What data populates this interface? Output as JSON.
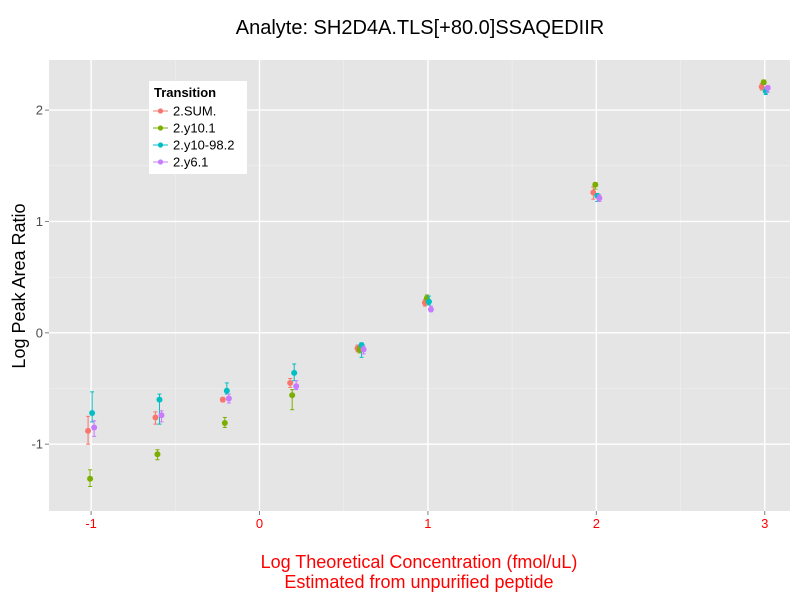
{
  "chart_data": {
    "type": "scatter",
    "title": "Analyte: SH2D4A.TLS[+80.0]SSAQEDIIR",
    "xlabel": [
      "Log Theoretical Concentration (fmol/uL)",
      "Estimated from unpurified peptide"
    ],
    "ylabel": "Log Peak Area Ratio",
    "xlim": [
      -1.25,
      3.15
    ],
    "ylim": [
      -1.6,
      2.45
    ],
    "x_ticks": [
      -1,
      0,
      1,
      2,
      3
    ],
    "y_ticks": [
      -1,
      0,
      1,
      2
    ],
    "x_tick_labels": [
      "-1",
      "0",
      "1",
      "2",
      "3"
    ],
    "y_tick_labels": [
      "-1",
      "0",
      "1",
      "2"
    ],
    "grid": true,
    "error_bars": true,
    "legend": {
      "title": "Transition",
      "position": "top-left"
    },
    "series": [
      {
        "name": "2.SUM.",
        "color": "#F8766D",
        "points": [
          {
            "x": -1.0,
            "y": -0.88,
            "lo": -1.0,
            "hi": -0.75
          },
          {
            "x": -0.6,
            "y": -0.76,
            "lo": -0.82,
            "hi": -0.71
          },
          {
            "x": -0.2,
            "y": -0.6,
            "lo": -0.62,
            "hi": -0.58
          },
          {
            "x": 0.2,
            "y": -0.45,
            "lo": -0.49,
            "hi": -0.41
          },
          {
            "x": 0.6,
            "y": -0.14,
            "lo": -0.17,
            "hi": -0.11
          },
          {
            "x": 1.0,
            "y": 0.27,
            "lo": 0.24,
            "hi": 0.3
          },
          {
            "x": 2.0,
            "y": 1.26,
            "lo": 1.2,
            "hi": 1.31
          },
          {
            "x": 3.0,
            "y": 2.21,
            "lo": 2.18,
            "hi": 2.24
          }
        ]
      },
      {
        "name": "2.y10.1",
        "color": "#7CAE00",
        "points": [
          {
            "x": -1.0,
            "y": -1.31,
            "lo": -1.38,
            "hi": -1.23
          },
          {
            "x": -0.6,
            "y": -1.09,
            "lo": -1.14,
            "hi": -1.05
          },
          {
            "x": -0.2,
            "y": -0.81,
            "lo": -0.85,
            "hi": -0.76
          },
          {
            "x": 0.2,
            "y": -0.56,
            "lo": -0.69,
            "hi": -0.51
          },
          {
            "x": 0.6,
            "y": -0.15,
            "lo": -0.18,
            "hi": -0.12
          },
          {
            "x": 1.0,
            "y": 0.31,
            "lo": 0.27,
            "hi": 0.34
          },
          {
            "x": 2.0,
            "y": 1.33,
            "lo": 1.29,
            "hi": 1.35
          },
          {
            "x": 3.0,
            "y": 2.25,
            "lo": 2.23,
            "hi": 2.27
          }
        ]
      },
      {
        "name": "2.y10-98.2",
        "color": "#00BFC4",
        "points": [
          {
            "x": -1.0,
            "y": -0.72,
            "lo": -0.8,
            "hi": -0.53
          },
          {
            "x": -0.6,
            "y": -0.6,
            "lo": -0.82,
            "hi": -0.55
          },
          {
            "x": -0.2,
            "y": -0.52,
            "lo": -0.55,
            "hi": -0.45
          },
          {
            "x": 0.2,
            "y": -0.36,
            "lo": -0.43,
            "hi": -0.28
          },
          {
            "x": 0.6,
            "y": -0.11,
            "lo": -0.22,
            "hi": -0.09
          },
          {
            "x": 1.0,
            "y": 0.28,
            "lo": 0.25,
            "hi": 0.33
          },
          {
            "x": 2.0,
            "y": 1.23,
            "lo": 1.18,
            "hi": 1.25
          },
          {
            "x": 3.0,
            "y": 2.17,
            "lo": 2.14,
            "hi": 2.2
          }
        ]
      },
      {
        "name": "2.y6.1",
        "color": "#C77CFF",
        "points": [
          {
            "x": -1.0,
            "y": -0.85,
            "lo": -0.93,
            "hi": -0.79
          },
          {
            "x": -0.6,
            "y": -0.74,
            "lo": -0.8,
            "hi": -0.7
          },
          {
            "x": -0.2,
            "y": -0.59,
            "lo": -0.63,
            "hi": -0.55
          },
          {
            "x": 0.2,
            "y": -0.48,
            "lo": -0.51,
            "hi": -0.43
          },
          {
            "x": 0.6,
            "y": -0.15,
            "lo": -0.19,
            "hi": -0.12
          },
          {
            "x": 1.0,
            "y": 0.21,
            "lo": 0.19,
            "hi": 0.24
          },
          {
            "x": 2.0,
            "y": 1.21,
            "lo": 1.18,
            "hi": 1.24
          },
          {
            "x": 3.0,
            "y": 2.2,
            "lo": 2.16,
            "hi": 2.22
          }
        ]
      }
    ]
  }
}
